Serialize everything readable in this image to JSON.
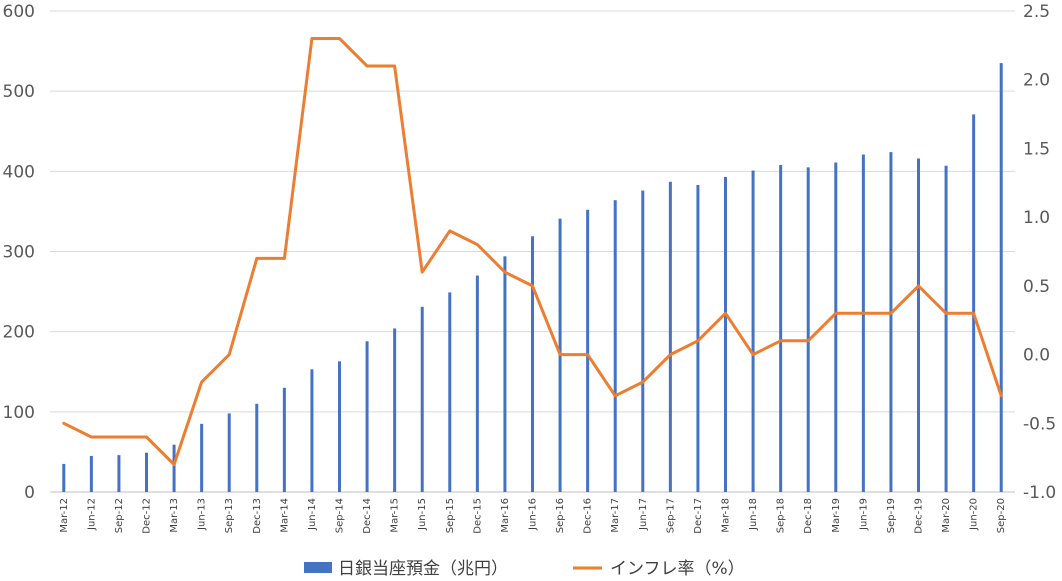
{
  "chart_data": {
    "type": "bar+line",
    "categories": [
      "Mar-12",
      "Jun-12",
      "Sep-12",
      "Dec-12",
      "Mar-13",
      "Jun-13",
      "Sep-13",
      "Dec-13",
      "Mar-14",
      "Jun-14",
      "Sep-14",
      "Dec-14",
      "Mar-15",
      "Jun-15",
      "Sep-15",
      "Dec-15",
      "Mar-16",
      "Jun-16",
      "Sep-16",
      "Dec-16",
      "Mar-17",
      "Jun-17",
      "Sep-17",
      "Dec-17",
      "Mar-18",
      "Jun-18",
      "Sep-18",
      "Dec-18",
      "Mar-19",
      "Jun-19",
      "Sep-19",
      "Dec-19",
      "Mar-20",
      "Jun-20",
      "Sep-20"
    ],
    "series": [
      {
        "name": "日銀当座預金（兆円）",
        "type": "bar",
        "axis": "left",
        "color": "#4472C4",
        "values": [
          35,
          45,
          46,
          49,
          59,
          85,
          98,
          110,
          130,
          153,
          163,
          188,
          204,
          231,
          249,
          270,
          294,
          319,
          341,
          352,
          364,
          376,
          387,
          383,
          393,
          401,
          408,
          405,
          411,
          421,
          424,
          416,
          407,
          471,
          535
        ]
      },
      {
        "name": "インフレ率（%）",
        "type": "line",
        "axis": "right",
        "color": "#ED7D31",
        "values": [
          -0.5,
          -0.6,
          -0.6,
          -0.6,
          -0.8,
          -0.2,
          0.0,
          0.7,
          0.7,
          2.3,
          2.3,
          2.1,
          2.1,
          0.6,
          0.9,
          0.8,
          0.6,
          0.5,
          0.0,
          0.0,
          -0.3,
          -0.2,
          0.0,
          0.1,
          0.3,
          0.0,
          0.1,
          0.1,
          0.3,
          0.3,
          0.3,
          0.5,
          0.3,
          0.3,
          -0.3
        ]
      }
    ],
    "y_left": {
      "lim": [
        0,
        600
      ],
      "ticks": [
        0,
        100,
        200,
        300,
        400,
        500,
        600
      ],
      "tick_labels": [
        "0",
        "100",
        "200",
        "300",
        "400",
        "500",
        "600"
      ]
    },
    "y_right": {
      "lim": [
        -1.0,
        2.5
      ],
      "ticks": [
        -1.0,
        -0.5,
        0.0,
        0.5,
        1.0,
        1.5,
        2.0,
        2.5
      ],
      "tick_labels": [
        "-1.0",
        "-0.5",
        "0.0",
        "0.5",
        "1.0",
        "1.5",
        "2.0",
        "2.5"
      ]
    },
    "grid": true,
    "legend": "bottom",
    "title": "",
    "xlabel": "",
    "ylabel": ""
  }
}
